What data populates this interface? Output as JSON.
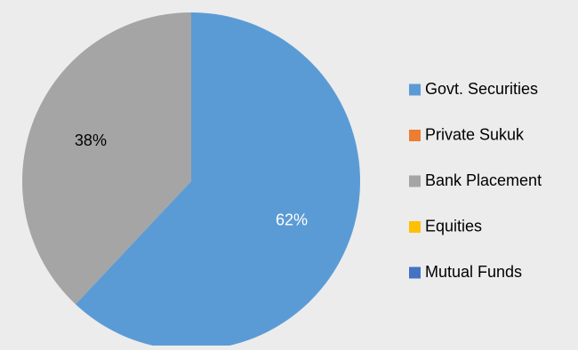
{
  "chart_data": {
    "type": "pie",
    "title": "",
    "slices": [
      {
        "label": "Govt. Securities",
        "value": 62,
        "value_label": "62%",
        "color": "#5b9bd5",
        "label_color": "#ffffff"
      },
      {
        "label": "Private Sukuk",
        "value": 0,
        "value_label": "",
        "color": "#ed7d31",
        "label_color": "#000000"
      },
      {
        "label": "Bank Placement",
        "value": 38,
        "value_label": "38%",
        "color": "#a5a5a5",
        "label_color": "#000000"
      },
      {
        "label": "Equities",
        "value": 0,
        "value_label": "",
        "color": "#ffc000",
        "label_color": "#000000"
      },
      {
        "label": "Mutual Funds",
        "value": 0,
        "value_label": "",
        "color": "#4472c4",
        "label_color": "#000000"
      }
    ],
    "legend_position": "right",
    "start_angle_deg": 0,
    "direction": "clockwise"
  }
}
